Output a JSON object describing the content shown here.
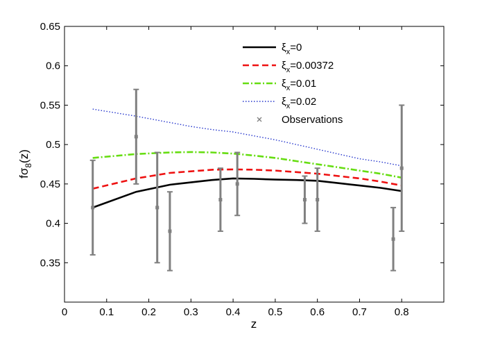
{
  "chart_data": {
    "type": "line",
    "xlabel": "z",
    "ylabel": {
      "base": "fσ",
      "sub": "8",
      "suffix": "(z)"
    },
    "xlim": [
      0,
      0.9
    ],
    "ylim": [
      0.3,
      0.65
    ],
    "xticks": [
      0,
      0.1,
      0.2,
      0.3,
      0.4,
      0.5,
      0.6,
      0.7,
      0.8
    ],
    "xtick_labels": [
      "0",
      "0.1",
      "0.2",
      "0.3",
      "0.4",
      "0.5",
      "0.6",
      "0.7",
      "0.8"
    ],
    "yticks": [
      0.35,
      0.4,
      0.45,
      0.5,
      0.55,
      0.6,
      0.65
    ],
    "ytick_labels": [
      "0.35",
      "0.4",
      "0.45",
      "0.5",
      "0.55",
      "0.6",
      "0.65"
    ],
    "legend_position": "top-right",
    "series": [
      {
        "name": "ξx=0",
        "label_base": "ξ",
        "label_sub": "x",
        "label_rest": "=0",
        "color": "#000000",
        "style": "solid",
        "x": [
          0.067,
          0.17,
          0.25,
          0.3,
          0.35,
          0.4,
          0.45,
          0.5,
          0.55,
          0.6,
          0.65,
          0.7,
          0.75,
          0.8
        ],
        "y": [
          0.42,
          0.44,
          0.449,
          0.452,
          0.455,
          0.457,
          0.4565,
          0.4555,
          0.455,
          0.454,
          0.451,
          0.448,
          0.445,
          0.441
        ]
      },
      {
        "name": "ξx=0.00372",
        "label_base": "ξ",
        "label_sub": "x",
        "label_rest": "=0.00372",
        "color": "#ee1111",
        "style": "dashed",
        "x": [
          0.067,
          0.17,
          0.25,
          0.3,
          0.35,
          0.4,
          0.45,
          0.5,
          0.55,
          0.6,
          0.65,
          0.7,
          0.75,
          0.8
        ],
        "y": [
          0.444,
          0.457,
          0.464,
          0.466,
          0.468,
          0.4685,
          0.468,
          0.467,
          0.465,
          0.463,
          0.46,
          0.457,
          0.453,
          0.448
        ]
      },
      {
        "name": "ξx=0.01",
        "label_base": "ξ",
        "label_sub": "x",
        "label_rest": "=0.01",
        "color": "#66dd11",
        "style": "dashdot",
        "x": [
          0.067,
          0.17,
          0.25,
          0.3,
          0.35,
          0.4,
          0.45,
          0.5,
          0.55,
          0.6,
          0.65,
          0.7,
          0.75,
          0.8
        ],
        "y": [
          0.483,
          0.488,
          0.49,
          0.4905,
          0.49,
          0.4885,
          0.486,
          0.483,
          0.479,
          0.475,
          0.471,
          0.467,
          0.463,
          0.458
        ]
      },
      {
        "name": "ξx=0.02",
        "label_base": "ξ",
        "label_sub": "x",
        "label_rest": "=0.02",
        "color": "#2233cc",
        "style": "dotted",
        "x": [
          0.067,
          0.17,
          0.25,
          0.3,
          0.35,
          0.4,
          0.45,
          0.5,
          0.55,
          0.6,
          0.65,
          0.7,
          0.75,
          0.8
        ],
        "y": [
          0.545,
          0.536,
          0.528,
          0.523,
          0.519,
          0.516,
          0.511,
          0.506,
          0.5,
          0.494,
          0.488,
          0.482,
          0.478,
          0.473
        ]
      }
    ],
    "observations": {
      "name": "Observations",
      "color": "#808080",
      "points": [
        {
          "x": 0.067,
          "y": 0.42,
          "lo": 0.36,
          "hi": 0.48
        },
        {
          "x": 0.17,
          "y": 0.51,
          "lo": 0.45,
          "hi": 0.57
        },
        {
          "x": 0.22,
          "y": 0.42,
          "lo": 0.35,
          "hi": 0.49
        },
        {
          "x": 0.25,
          "y": 0.39,
          "lo": 0.34,
          "hi": 0.44
        },
        {
          "x": 0.37,
          "y": 0.43,
          "lo": 0.39,
          "hi": 0.47
        },
        {
          "x": 0.41,
          "y": 0.45,
          "lo": 0.41,
          "hi": 0.49
        },
        {
          "x": 0.57,
          "y": 0.43,
          "lo": 0.4,
          "hi": 0.46
        },
        {
          "x": 0.6,
          "y": 0.43,
          "lo": 0.39,
          "hi": 0.47
        },
        {
          "x": 0.78,
          "y": 0.38,
          "lo": 0.34,
          "hi": 0.42
        },
        {
          "x": 0.8,
          "y": 0.47,
          "lo": 0.39,
          "hi": 0.55
        }
      ]
    }
  }
}
